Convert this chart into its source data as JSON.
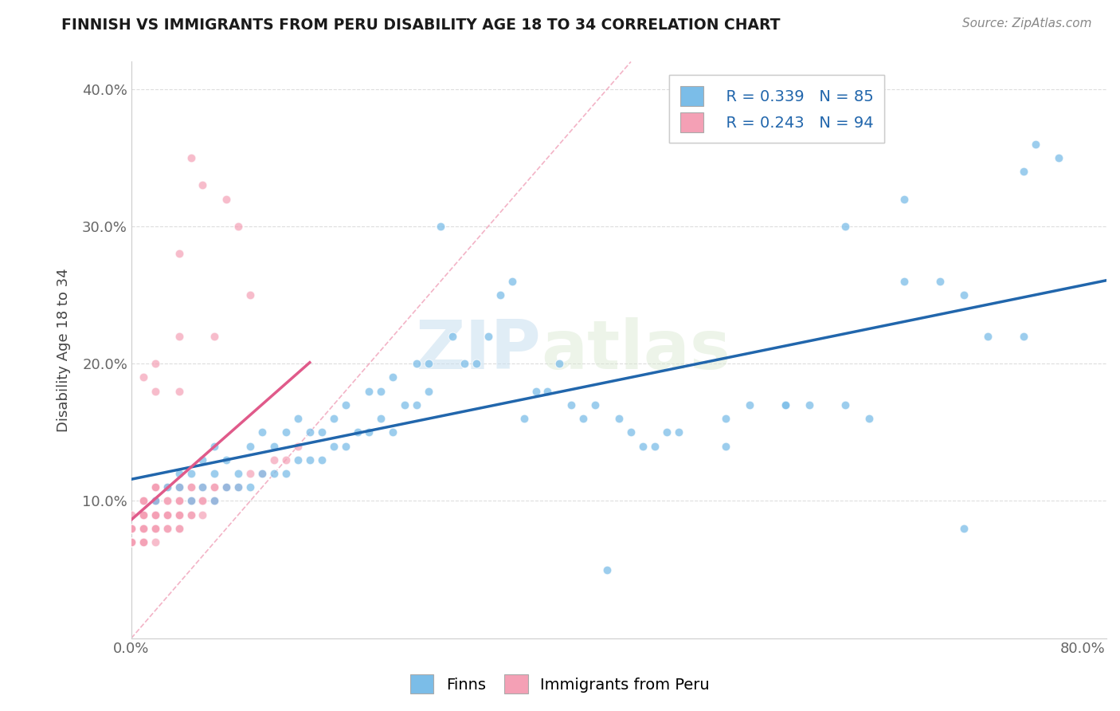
{
  "title": "FINNISH VS IMMIGRANTS FROM PERU DISABILITY AGE 18 TO 34 CORRELATION CHART",
  "source": "Source: ZipAtlas.com",
  "ylabel": "Disability Age 18 to 34",
  "xlim": [
    0.0,
    0.82
  ],
  "ylim": [
    0.0,
    0.42
  ],
  "x_ticks": [
    0.0,
    0.1,
    0.2,
    0.3,
    0.4,
    0.5,
    0.6,
    0.7,
    0.8
  ],
  "y_ticks": [
    0.0,
    0.1,
    0.2,
    0.3,
    0.4
  ],
  "finns_color": "#7bbde8",
  "peru_color": "#f4a0b5",
  "finns_line_color": "#2166ac",
  "peru_line_color": "#e05a8a",
  "diagonal_color": "#f0a0b8",
  "watermark_zip": "ZIP",
  "watermark_atlas": "atlas",
  "legend_label_finns": "Finns",
  "legend_label_peru": "Immigrants from Peru",
  "finns_R": 0.339,
  "finns_N": 85,
  "peru_R": 0.243,
  "peru_N": 94,
  "finns_x": [
    0.02,
    0.03,
    0.04,
    0.04,
    0.05,
    0.05,
    0.06,
    0.06,
    0.07,
    0.07,
    0.07,
    0.08,
    0.08,
    0.09,
    0.09,
    0.1,
    0.1,
    0.11,
    0.11,
    0.12,
    0.12,
    0.13,
    0.13,
    0.14,
    0.14,
    0.15,
    0.15,
    0.16,
    0.16,
    0.17,
    0.17,
    0.18,
    0.18,
    0.19,
    0.2,
    0.2,
    0.21,
    0.21,
    0.22,
    0.22,
    0.23,
    0.24,
    0.24,
    0.25,
    0.25,
    0.26,
    0.27,
    0.28,
    0.29,
    0.3,
    0.31,
    0.32,
    0.33,
    0.34,
    0.35,
    0.36,
    0.37,
    0.38,
    0.39,
    0.4,
    0.41,
    0.42,
    0.43,
    0.44,
    0.45,
    0.46,
    0.5,
    0.52,
    0.55,
    0.57,
    0.6,
    0.62,
    0.65,
    0.68,
    0.7,
    0.72,
    0.75,
    0.76,
    0.78,
    0.5,
    0.55,
    0.6,
    0.65,
    0.7,
    0.75
  ],
  "finns_y": [
    0.1,
    0.11,
    0.11,
    0.12,
    0.1,
    0.12,
    0.11,
    0.13,
    0.1,
    0.12,
    0.14,
    0.11,
    0.13,
    0.11,
    0.12,
    0.11,
    0.14,
    0.12,
    0.15,
    0.12,
    0.14,
    0.12,
    0.15,
    0.13,
    0.16,
    0.13,
    0.15,
    0.13,
    0.15,
    0.14,
    0.16,
    0.14,
    0.17,
    0.15,
    0.15,
    0.18,
    0.16,
    0.18,
    0.15,
    0.19,
    0.17,
    0.17,
    0.2,
    0.18,
    0.2,
    0.3,
    0.22,
    0.2,
    0.2,
    0.22,
    0.25,
    0.26,
    0.16,
    0.18,
    0.18,
    0.2,
    0.17,
    0.16,
    0.17,
    0.05,
    0.16,
    0.15,
    0.14,
    0.14,
    0.15,
    0.15,
    0.16,
    0.17,
    0.17,
    0.17,
    0.17,
    0.16,
    0.26,
    0.26,
    0.25,
    0.22,
    0.22,
    0.36,
    0.35,
    0.14,
    0.17,
    0.3,
    0.32,
    0.08,
    0.34
  ],
  "peru_x": [
    0.0,
    0.0,
    0.0,
    0.0,
    0.0,
    0.0,
    0.0,
    0.0,
    0.0,
    0.0,
    0.01,
    0.01,
    0.01,
    0.01,
    0.01,
    0.01,
    0.01,
    0.01,
    0.01,
    0.01,
    0.01,
    0.01,
    0.01,
    0.01,
    0.01,
    0.02,
    0.02,
    0.02,
    0.02,
    0.02,
    0.02,
    0.02,
    0.02,
    0.02,
    0.02,
    0.02,
    0.02,
    0.02,
    0.02,
    0.02,
    0.02,
    0.03,
    0.03,
    0.03,
    0.03,
    0.03,
    0.03,
    0.03,
    0.03,
    0.03,
    0.04,
    0.04,
    0.04,
    0.04,
    0.04,
    0.04,
    0.04,
    0.04,
    0.04,
    0.04,
    0.04,
    0.04,
    0.05,
    0.05,
    0.05,
    0.05,
    0.05,
    0.05,
    0.05,
    0.06,
    0.06,
    0.06,
    0.06,
    0.06,
    0.07,
    0.07,
    0.07,
    0.07,
    0.07,
    0.08,
    0.08,
    0.08,
    0.09,
    0.09,
    0.1,
    0.1,
    0.11,
    0.12,
    0.13,
    0.14,
    0.01,
    0.02,
    0.02,
    0.04
  ],
  "peru_y": [
    0.07,
    0.07,
    0.07,
    0.07,
    0.07,
    0.08,
    0.08,
    0.08,
    0.08,
    0.09,
    0.07,
    0.07,
    0.07,
    0.08,
    0.08,
    0.08,
    0.08,
    0.08,
    0.09,
    0.09,
    0.09,
    0.09,
    0.1,
    0.1,
    0.1,
    0.07,
    0.08,
    0.08,
    0.08,
    0.09,
    0.09,
    0.09,
    0.09,
    0.1,
    0.1,
    0.1,
    0.1,
    0.11,
    0.11,
    0.11,
    0.11,
    0.08,
    0.08,
    0.09,
    0.09,
    0.09,
    0.09,
    0.1,
    0.1,
    0.11,
    0.08,
    0.08,
    0.09,
    0.09,
    0.09,
    0.1,
    0.1,
    0.1,
    0.11,
    0.11,
    0.22,
    0.28,
    0.09,
    0.09,
    0.1,
    0.1,
    0.11,
    0.11,
    0.35,
    0.09,
    0.1,
    0.1,
    0.11,
    0.33,
    0.1,
    0.1,
    0.11,
    0.11,
    0.22,
    0.11,
    0.11,
    0.32,
    0.11,
    0.3,
    0.12,
    0.25,
    0.12,
    0.13,
    0.13,
    0.14,
    0.19,
    0.18,
    0.2,
    0.18
  ]
}
